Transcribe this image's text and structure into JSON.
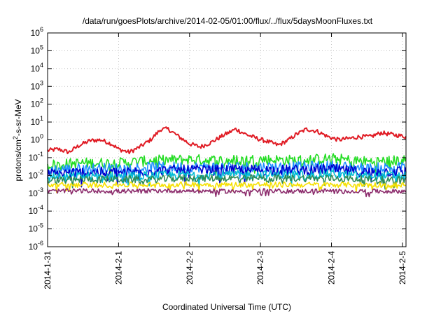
{
  "chart_data": {
    "type": "line",
    "title": "/data/run/goesPlots/archive/2014-02-05/01:00/flux/../flux/5daysMoonFluxes.txt",
    "xlabel": "Coordinated Universal Time (UTC)",
    "ylabel_main": "protons/cm",
    "ylabel_sup": "2",
    "ylabel_rest": "-s-sr-MeV",
    "x_tick_labels": [
      "2014-1-31",
      "2014-2-1",
      "2014-2-2",
      "2014-2-3",
      "2014-2-4",
      "2014-2-5"
    ],
    "xlim": [
      0,
      5.05
    ],
    "ylim_log10": [
      -6,
      6
    ],
    "y_scale": "log",
    "y_tick_exponents": [
      -6,
      -5,
      -4,
      -3,
      -2,
      -1,
      0,
      1,
      2,
      3,
      4,
      5,
      6
    ],
    "grid": true,
    "legend": "none",
    "series": [
      {
        "color": "#e01b24",
        "x": [
          0,
          0.15,
          0.3,
          0.45,
          0.6,
          0.75,
          0.9,
          1.0,
          1.15,
          1.3,
          1.45,
          1.6,
          1.7,
          1.85,
          2.0,
          2.15,
          2.3,
          2.5,
          2.65,
          2.8,
          2.95,
          3.1,
          3.25,
          3.4,
          3.5,
          3.65,
          3.8,
          3.95,
          4.1,
          4.25,
          4.4,
          4.55,
          4.7,
          4.85,
          5.05
        ],
        "values": [
          0.25,
          0.3,
          0.2,
          0.5,
          0.9,
          1.0,
          0.6,
          0.3,
          0.2,
          0.4,
          1.0,
          4.0,
          4.0,
          1.5,
          0.6,
          0.4,
          0.7,
          2.0,
          4.0,
          2.0,
          1.2,
          0.8,
          0.5,
          1.0,
          2.0,
          4.0,
          3.0,
          1.5,
          1.0,
          1.2,
          1.5,
          1.5,
          2.5,
          2.0,
          1.5
        ],
        "noise": 0.12
      },
      {
        "color": "#22dd22",
        "x": [
          0,
          0.5,
          1.0,
          1.5,
          2.0,
          2.5,
          3.0,
          3.5,
          4.0,
          4.5,
          5.05
        ],
        "values": [
          0.04,
          0.05,
          0.05,
          0.07,
          0.08,
          0.07,
          0.08,
          0.07,
          0.09,
          0.06,
          0.07
        ],
        "noise": 0.3
      },
      {
        "color": "#1e90ff",
        "x": [
          0,
          0.5,
          1.0,
          1.5,
          2.0,
          2.5,
          3.0,
          3.5,
          4.0,
          4.5,
          5.05
        ],
        "values": [
          0.02,
          0.025,
          0.025,
          0.03,
          0.03,
          0.03,
          0.03,
          0.03,
          0.035,
          0.025,
          0.03
        ],
        "noise": 0.3
      },
      {
        "color": "#0000cc",
        "x": [
          0,
          0.5,
          1.0,
          1.5,
          2.0,
          2.5,
          3.0,
          3.5,
          4.0,
          4.5,
          5.05
        ],
        "values": [
          0.012,
          0.015,
          0.015,
          0.018,
          0.02,
          0.02,
          0.02,
          0.02,
          0.022,
          0.015,
          0.018
        ],
        "noise": 0.3
      },
      {
        "color": "#00bcd4",
        "x": [
          0,
          0.5,
          1.0,
          1.5,
          2.0,
          2.5,
          3.0,
          3.5,
          4.0,
          4.5,
          5.05
        ],
        "values": [
          0.008,
          0.009,
          0.009,
          0.01,
          0.011,
          0.011,
          0.011,
          0.011,
          0.012,
          0.009,
          0.01
        ],
        "noise": 0.25
      },
      {
        "color": "#2e8b57",
        "x": [
          0,
          0.5,
          1.0,
          1.5,
          2.0,
          2.5,
          3.0,
          3.5,
          4.0,
          4.5,
          5.05
        ],
        "values": [
          0.005,
          0.006,
          0.006,
          0.006,
          0.007,
          0.007,
          0.007,
          0.007,
          0.007,
          0.006,
          0.006
        ],
        "noise": 0.2
      },
      {
        "color": "#f5e000",
        "x": [
          0,
          0.5,
          1.0,
          1.5,
          2.0,
          2.5,
          3.0,
          3.5,
          4.0,
          4.5,
          5.05
        ],
        "values": [
          0.0028,
          0.003,
          0.003,
          0.003,
          0.0032,
          0.003,
          0.0031,
          0.003,
          0.003,
          0.003,
          0.003
        ],
        "noise": 0.15
      },
      {
        "color": "#8b2a6b",
        "x": [
          0,
          0.5,
          1.0,
          1.5,
          2.0,
          2.5,
          3.0,
          3.5,
          4.0,
          4.5,
          5.05
        ],
        "values": [
          0.0013,
          0.0014,
          0.0013,
          0.0014,
          0.0014,
          0.0013,
          0.0014,
          0.0013,
          0.0014,
          0.0013,
          0.0013
        ],
        "noise": 0.12
      }
    ]
  }
}
